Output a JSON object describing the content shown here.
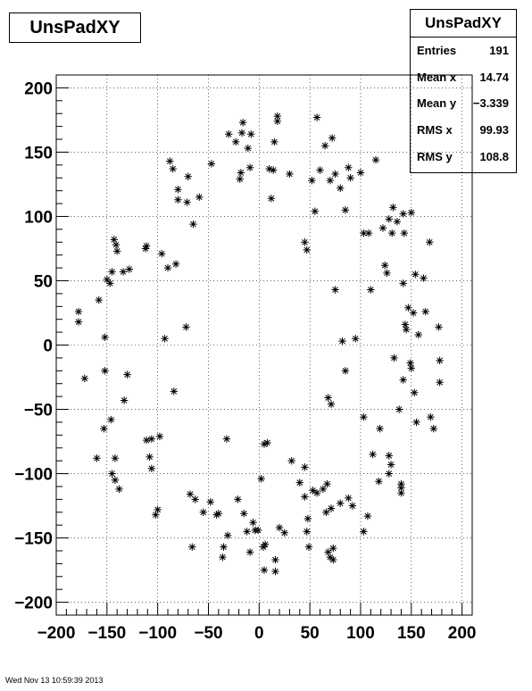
{
  "title": "UnsPadXY",
  "stats": {
    "title": "UnsPadXY",
    "rows": [
      {
        "label": "Entries",
        "value": "191"
      },
      {
        "label": "Mean x",
        "value": "14.74"
      },
      {
        "label": "Mean y",
        "value": "−3.339"
      },
      {
        "label": "RMS x",
        "value": "99.93"
      },
      {
        "label": "RMS y",
        "value": "108.8"
      }
    ]
  },
  "footer": "Wed Nov 13 10:59:39 2013",
  "chart_data": {
    "type": "scatter",
    "marker": "asterisk",
    "xlim": [
      -200,
      210
    ],
    "ylim": [
      -210,
      210
    ],
    "xticks": [
      -200,
      -150,
      -100,
      -50,
      0,
      50,
      100,
      150,
      200
    ],
    "yticks": [
      -200,
      -150,
      -100,
      -50,
      0,
      50,
      100,
      150,
      200
    ],
    "xtick_labels": [
      "−200",
      "−150",
      "−100",
      "−50",
      "0",
      "50",
      "100",
      "150",
      "200"
    ],
    "ytick_labels": [
      "−200",
      "−150",
      "−100",
      "−50",
      "0",
      "50",
      "100",
      "150",
      "200"
    ],
    "grid": true,
    "points": [
      [
        -178,
        26
      ],
      [
        -178,
        18
      ],
      [
        -172,
        -26
      ],
      [
        -160,
        -88
      ],
      [
        -158,
        35
      ],
      [
        -153,
        -65
      ],
      [
        -152,
        6
      ],
      [
        -152,
        -20
      ],
      [
        -150,
        51
      ],
      [
        -147,
        48
      ],
      [
        -145,
        57
      ],
      [
        -146,
        -58
      ],
      [
        -143,
        82
      ],
      [
        -141,
        78
      ],
      [
        -140,
        73
      ],
      [
        -145,
        -100
      ],
      [
        -142,
        -105
      ],
      [
        -142,
        -88
      ],
      [
        -138,
        -112
      ],
      [
        -134,
        57
      ],
      [
        -133,
        -43
      ],
      [
        -130,
        -23
      ],
      [
        -128,
        59
      ],
      [
        -112,
        75
      ],
      [
        -111,
        77
      ],
      [
        -111,
        -74
      ],
      [
        -108,
        -87
      ],
      [
        -106,
        -96
      ],
      [
        -106,
        -73
      ],
      [
        -102,
        -132
      ],
      [
        -100,
        -128
      ],
      [
        -98,
        -71
      ],
      [
        -96,
        71
      ],
      [
        -93,
        5
      ],
      [
        -90,
        60
      ],
      [
        -88,
        143
      ],
      [
        -85,
        137
      ],
      [
        -82,
        63
      ],
      [
        -84,
        -36
      ],
      [
        -80,
        113
      ],
      [
        -80,
        121
      ],
      [
        -72,
        14
      ],
      [
        -71,
        111
      ],
      [
        -70,
        131
      ],
      [
        -68,
        -116
      ],
      [
        -66,
        -157
      ],
      [
        -65,
        94
      ],
      [
        -63,
        -120
      ],
      [
        -59,
        115
      ],
      [
        -55,
        -130
      ],
      [
        -47,
        141
      ],
      [
        -48,
        -122
      ],
      [
        -42,
        -132
      ],
      [
        -40,
        -131
      ],
      [
        -36,
        -165
      ],
      [
        -35,
        -157
      ],
      [
        -32,
        -73
      ],
      [
        -31,
        -148
      ],
      [
        -30,
        164
      ],
      [
        -23,
        158
      ],
      [
        -21,
        -120
      ],
      [
        -19,
        129
      ],
      [
        -18,
        134
      ],
      [
        -17,
        165
      ],
      [
        -16,
        173
      ],
      [
        -15,
        -131
      ],
      [
        -12,
        -145
      ],
      [
        -11,
        153
      ],
      [
        -9,
        138
      ],
      [
        -8,
        164
      ],
      [
        -9,
        -161
      ],
      [
        -6,
        -138
      ],
      [
        -4,
        -144
      ],
      [
        -1,
        -144
      ],
      [
        2,
        -104
      ],
      [
        4,
        -157
      ],
      [
        5,
        -77
      ],
      [
        6,
        -155
      ],
      [
        5,
        -175
      ],
      [
        8,
        -76
      ],
      [
        10,
        137
      ],
      [
        12,
        114
      ],
      [
        14,
        136
      ],
      [
        15,
        158
      ],
      [
        16,
        -167
      ],
      [
        16,
        -176
      ],
      [
        18,
        174
      ],
      [
        18,
        178
      ],
      [
        20,
        -142
      ],
      [
        25,
        -146
      ],
      [
        30,
        133
      ],
      [
        32,
        -90
      ],
      [
        40,
        -107
      ],
      [
        45,
        -95
      ],
      [
        45,
        -118
      ],
      [
        47,
        -145
      ],
      [
        48,
        -135
      ],
      [
        45,
        80
      ],
      [
        47,
        74
      ],
      [
        49,
        -157
      ],
      [
        52,
        128
      ],
      [
        53,
        -113
      ],
      [
        55,
        104
      ],
      [
        57,
        -115
      ],
      [
        57,
        177
      ],
      [
        60,
        136
      ],
      [
        63,
        -112
      ],
      [
        65,
        155
      ],
      [
        66,
        -130
      ],
      [
        67,
        -108
      ],
      [
        68,
        -161
      ],
      [
        68,
        -41
      ],
      [
        70,
        -165
      ],
      [
        71,
        -127
      ],
      [
        71,
        -46
      ],
      [
        73,
        -167
      ],
      [
        73,
        -158
      ],
      [
        70,
        128
      ],
      [
        72,
        161
      ],
      [
        75,
        43
      ],
      [
        75,
        133
      ],
      [
        80,
        122
      ],
      [
        80,
        -123
      ],
      [
        82,
        3
      ],
      [
        85,
        -20
      ],
      [
        85,
        105
      ],
      [
        88,
        -119
      ],
      [
        88,
        138
      ],
      [
        90,
        130
      ],
      [
        92,
        -125
      ],
      [
        95,
        5
      ],
      [
        100,
        134
      ],
      [
        103,
        87
      ],
      [
        103,
        -56
      ],
      [
        103,
        -145
      ],
      [
        107,
        -133
      ],
      [
        108,
        87
      ],
      [
        110,
        43
      ],
      [
        112,
        -85
      ],
      [
        115,
        144
      ],
      [
        119,
        -65
      ],
      [
        118,
        -106
      ],
      [
        122,
        91
      ],
      [
        124,
        62
      ],
      [
        126,
        56
      ],
      [
        128,
        98
      ],
      [
        128,
        -100
      ],
      [
        128,
        -86
      ],
      [
        130,
        -93
      ],
      [
        132,
        107
      ],
      [
        131,
        87
      ],
      [
        133,
        -10
      ],
      [
        136,
        96
      ],
      [
        138,
        -50
      ],
      [
        140,
        -111
      ],
      [
        140,
        -115
      ],
      [
        140,
        -108
      ],
      [
        142,
        48
      ],
      [
        143,
        87
      ],
      [
        142,
        102
      ],
      [
        142,
        -27
      ],
      [
        144,
        16
      ],
      [
        145,
        12
      ],
      [
        147,
        29
      ],
      [
        149,
        -14
      ],
      [
        150,
        103
      ],
      [
        150,
        -18
      ],
      [
        152,
        25
      ],
      [
        153,
        -37
      ],
      [
        154,
        55
      ],
      [
        155,
        -60
      ],
      [
        157,
        8
      ],
      [
        162,
        52
      ],
      [
        164,
        26
      ],
      [
        168,
        80
      ],
      [
        169,
        -56
      ],
      [
        172,
        -65
      ],
      [
        177,
        14
      ],
      [
        178,
        -12
      ],
      [
        178,
        -29
      ]
    ]
  }
}
